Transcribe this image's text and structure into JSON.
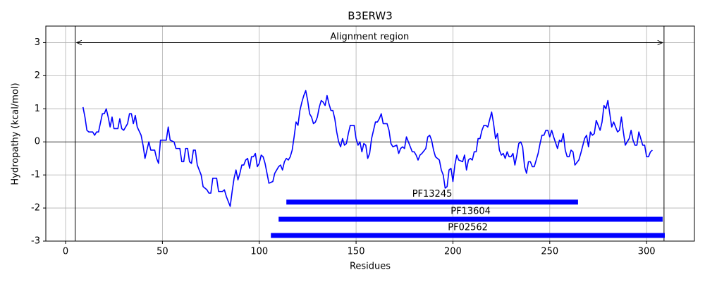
{
  "chart_data": {
    "type": "line",
    "title": "B3ERW3",
    "x_label": "Residues",
    "y_label": "Hydropathy (kcal/mol)",
    "xlim": [
      -10.2,
      324.7
    ],
    "ylim": [
      -3,
      3.5
    ],
    "xticks": [
      0,
      50,
      100,
      150,
      200,
      250,
      300
    ],
    "yticks": [
      -3,
      -2,
      -1,
      0,
      1,
      2,
      3
    ],
    "grid": true,
    "hline": 0,
    "region": {
      "label": "Alignment region",
      "start": 5,
      "end": 309,
      "y": 3
    },
    "domains": [
      {
        "name": "PF13245",
        "start": 114,
        "end": 264.6,
        "y": -1.82,
        "color": "#0000ff"
      },
      {
        "name": "PF13604",
        "start": 110,
        "end": 308.3,
        "y": -2.34,
        "color": "#0000ff"
      },
      {
        "name": "PF02562",
        "start": 106,
        "end": 309.4,
        "y": -2.83,
        "color": "#0000ff"
      }
    ],
    "x": [
      9,
      10,
      11,
      12,
      14,
      15,
      16,
      17,
      19,
      20,
      21,
      22,
      23,
      24,
      25,
      27,
      28,
      29,
      30,
      32,
      33,
      34,
      35,
      36,
      37,
      39,
      40,
      41,
      43,
      44,
      46,
      47,
      48,
      49,
      50,
      52,
      53,
      54,
      56,
      57,
      59,
      60,
      61,
      62,
      63,
      64,
      65,
      66,
      67,
      68,
      70,
      71,
      73,
      74,
      75,
      76,
      78,
      79,
      81,
      82,
      83,
      85,
      86,
      87,
      88,
      89,
      90,
      91,
      92,
      93,
      94,
      95,
      96,
      97,
      98,
      99,
      100,
      101,
      102,
      103,
      104,
      105,
      107,
      108,
      110,
      111,
      112,
      113,
      114,
      115,
      116,
      117,
      118,
      119,
      120,
      121,
      122,
      123,
      124,
      125,
      126,
      127,
      128,
      129,
      130,
      131,
      132,
      133,
      134,
      135,
      136,
      137,
      138,
      139,
      140,
      141,
      142,
      143,
      144,
      145,
      146,
      147,
      149,
      150,
      151,
      152,
      153,
      154,
      155,
      156,
      157,
      158,
      159,
      160,
      161,
      162,
      163,
      164,
      166,
      167,
      168,
      169,
      171,
      172,
      173,
      174,
      175,
      176,
      178,
      179,
      180,
      181,
      182,
      183,
      184,
      186,
      187,
      188,
      189,
      190,
      191,
      193,
      194,
      195,
      196,
      197,
      198,
      199,
      200,
      201,
      202,
      203,
      205,
      206,
      207,
      208,
      209,
      210,
      211,
      212,
      213,
      214,
      215,
      216,
      217,
      218,
      220,
      221,
      222,
      223,
      224,
      225,
      226,
      227,
      228,
      229,
      230,
      231,
      232,
      233,
      234,
      235,
      236,
      237,
      238,
      239,
      240,
      241,
      242,
      244,
      245,
      246,
      247,
      248,
      249,
      250,
      251,
      252,
      254,
      255,
      256,
      257,
      258,
      259,
      260,
      261,
      262,
      263,
      265,
      266,
      268,
      269,
      270,
      271,
      272,
      273,
      274,
      276,
      277,
      278,
      279,
      280,
      281,
      282,
      283,
      285,
      286,
      287,
      288,
      289,
      291,
      292,
      293,
      294,
      295,
      296,
      298,
      299,
      300,
      301,
      302,
      303
    ],
    "series": [
      {
        "color": "#0000ff",
        "values": [
          1.05,
          0.75,
          0.35,
          0.3,
          0.3,
          0.2,
          0.3,
          0.3,
          0.85,
          0.85,
          1.0,
          0.75,
          0.45,
          0.75,
          0.4,
          0.4,
          0.7,
          0.4,
          0.35,
          0.55,
          0.85,
          0.85,
          0.55,
          0.8,
          0.45,
          0.2,
          -0.1,
          -0.5,
          0.0,
          -0.25,
          -0.25,
          -0.5,
          -0.65,
          0.05,
          0.05,
          0.05,
          0.45,
          0.05,
          0.0,
          -0.2,
          -0.2,
          -0.6,
          -0.6,
          -0.2,
          -0.2,
          -0.6,
          -0.65,
          -0.25,
          -0.25,
          -0.7,
          -1.0,
          -1.35,
          -1.45,
          -1.55,
          -1.55,
          -1.1,
          -1.1,
          -1.5,
          -1.5,
          -1.45,
          -1.65,
          -1.95,
          -1.5,
          -1.1,
          -0.85,
          -1.15,
          -0.95,
          -0.7,
          -0.7,
          -0.55,
          -0.5,
          -0.8,
          -0.45,
          -0.45,
          -0.35,
          -0.75,
          -0.65,
          -0.4,
          -0.45,
          -0.65,
          -0.95,
          -1.25,
          -1.2,
          -0.95,
          -0.75,
          -0.7,
          -0.85,
          -0.6,
          -0.5,
          -0.55,
          -0.45,
          -0.25,
          0.15,
          0.6,
          0.5,
          0.95,
          1.2,
          1.4,
          1.55,
          1.25,
          0.85,
          0.75,
          0.55,
          0.6,
          0.75,
          1.05,
          1.25,
          1.2,
          1.1,
          1.4,
          1.15,
          0.95,
          0.95,
          0.7,
          0.3,
          0.0,
          -0.15,
          0.1,
          -0.1,
          -0.05,
          0.25,
          0.5,
          0.5,
          0.1,
          -0.1,
          0.0,
          -0.3,
          -0.05,
          -0.1,
          -0.5,
          -0.35,
          0.1,
          0.35,
          0.6,
          0.6,
          0.7,
          0.85,
          0.55,
          0.55,
          0.35,
          -0.05,
          -0.15,
          -0.1,
          -0.35,
          -0.2,
          -0.15,
          -0.2,
          0.15,
          -0.15,
          -0.3,
          -0.3,
          -0.4,
          -0.55,
          -0.4,
          -0.35,
          -0.2,
          0.15,
          0.2,
          0.05,
          -0.25,
          -0.45,
          -0.55,
          -0.85,
          -1.0,
          -1.4,
          -1.35,
          -0.85,
          -0.8,
          -1.2,
          -0.7,
          -0.4,
          -0.55,
          -0.6,
          -0.4,
          -0.85,
          -0.55,
          -0.5,
          -0.55,
          -0.3,
          -0.3,
          0.1,
          0.1,
          0.35,
          0.5,
          0.5,
          0.45,
          0.9,
          0.55,
          0.1,
          0.25,
          -0.25,
          -0.4,
          -0.35,
          -0.5,
          -0.3,
          -0.45,
          -0.45,
          -0.35,
          -0.7,
          -0.4,
          -0.05,
          0.0,
          -0.15,
          -0.75,
          -0.95,
          -0.6,
          -0.6,
          -0.75,
          -0.75,
          -0.35,
          -0.05,
          0.2,
          0.2,
          0.35,
          0.35,
          0.15,
          0.35,
          0.15,
          -0.2,
          0.05,
          0.0,
          0.25,
          -0.25,
          -0.45,
          -0.45,
          -0.25,
          -0.3,
          -0.7,
          -0.55,
          -0.35,
          0.1,
          0.2,
          -0.15,
          0.3,
          0.2,
          0.25,
          0.65,
          0.35,
          0.6,
          1.1,
          1.0,
          1.25,
          0.85,
          0.45,
          0.6,
          0.3,
          0.35,
          0.75,
          0.3,
          -0.1,
          0.1,
          0.35,
          0.05,
          -0.1,
          -0.1,
          0.3,
          -0.1,
          -0.1,
          -0.45,
          -0.45,
          -0.3,
          -0.25
        ]
      }
    ]
  }
}
